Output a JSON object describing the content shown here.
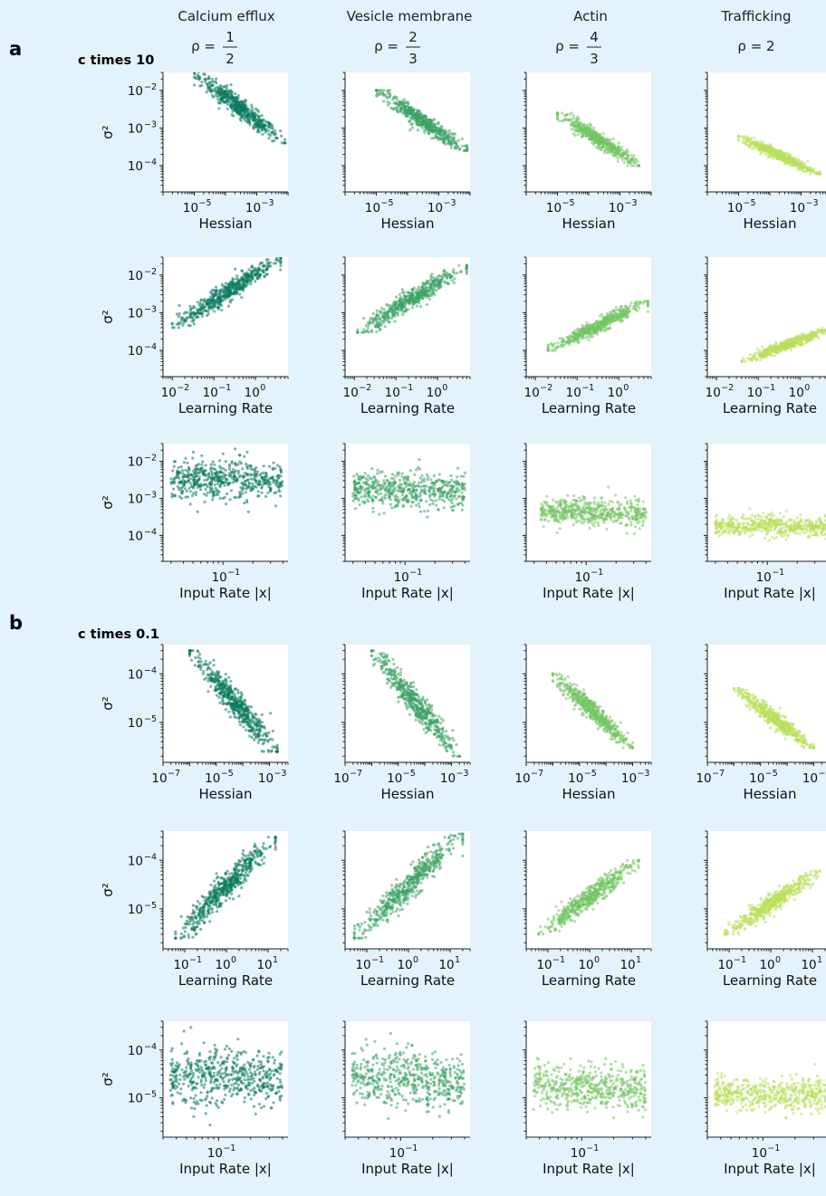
{
  "figure": {
    "panel_a_label": "a",
    "panel_b_label": "b",
    "condition_a": "c times 10",
    "condition_b": "c times 0.1"
  },
  "columns": [
    {
      "title": "Calcium efflux",
      "rho_text": "ρ =",
      "rho_num": "1",
      "rho_den": "2",
      "color": "#0b7a5e"
    },
    {
      "title": "Vesicle membrane",
      "rho_text": "ρ =",
      "rho_num": "2",
      "rho_den": "3",
      "color": "#3da265"
    },
    {
      "title": "Actin",
      "rho_text": "ρ =",
      "rho_num": "4",
      "rho_den": "3",
      "color": "#74c464"
    },
    {
      "title": "Trafficking",
      "rho_text": "ρ = 2",
      "rho_num": "",
      "rho_den": "",
      "color": "#b9e05c"
    }
  ],
  "row_labels": {
    "hessian": "Hessian",
    "learning_rate": "Learning Rate",
    "input_rate": "Input Rate |x|",
    "y_axis": "σ²"
  },
  "chart_data": [
    {
      "type": "scatter",
      "panel": "a",
      "condition": "c times 10",
      "x_variable": "Hessian",
      "y_variable": "σ²",
      "x_scale": "log",
      "y_scale": "log",
      "xlim": [
        1e-06,
        0.01
      ],
      "ylim": [
        2e-05,
        0.03
      ],
      "x_ticks": [
        1e-05,
        0.001
      ],
      "y_ticks": [
        0.0001,
        0.001,
        0.01
      ],
      "series": [
        {
          "name": "Calcium efflux",
          "x_range": [
            1e-05,
            0.008
          ],
          "y_range": [
            0.0004,
            0.03
          ],
          "trend": "negative"
        },
        {
          "name": "Vesicle membrane",
          "x_range": [
            1e-05,
            0.008
          ],
          "y_range": [
            0.00025,
            0.01
          ],
          "trend": "negative"
        },
        {
          "name": "Actin",
          "x_range": [
            1e-05,
            0.004
          ],
          "y_range": [
            0.0001,
            0.0025
          ],
          "trend": "negative"
        },
        {
          "name": "Trafficking",
          "x_range": [
            1e-05,
            0.004
          ],
          "y_range": [
            6e-05,
            0.0006
          ],
          "trend": "negative"
        }
      ]
    },
    {
      "type": "scatter",
      "panel": "a",
      "condition": "c times 10",
      "x_variable": "Learning Rate",
      "y_variable": "σ²",
      "x_scale": "log",
      "y_scale": "log",
      "xlim": [
        0.006,
        6
      ],
      "ylim": [
        2e-05,
        0.03
      ],
      "x_ticks": [
        0.01,
        0.1,
        1
      ],
      "y_ticks": [
        0.0001,
        0.001,
        0.01
      ],
      "series": [
        {
          "name": "Calcium efflux",
          "x_range": [
            0.01,
            4
          ],
          "y_range": [
            0.0004,
            0.03
          ],
          "trend": "positive"
        },
        {
          "name": "Vesicle membrane",
          "x_range": [
            0.012,
            5
          ],
          "y_range": [
            0.0003,
            0.018
          ],
          "trend": "positive"
        },
        {
          "name": "Actin",
          "x_range": [
            0.02,
            5
          ],
          "y_range": [
            0.0001,
            0.002
          ],
          "trend": "positive"
        },
        {
          "name": "Trafficking",
          "x_range": [
            0.04,
            6
          ],
          "y_range": [
            5e-05,
            0.0004
          ],
          "trend": "positive"
        }
      ]
    },
    {
      "type": "scatter",
      "panel": "a",
      "condition": "c times 10",
      "x_variable": "Input Rate |x|",
      "y_variable": "σ²",
      "x_scale": "log",
      "y_scale": "log",
      "xlim": [
        0.025,
        0.45
      ],
      "ylim": [
        2e-05,
        0.03
      ],
      "x_ticks": [
        0.1
      ],
      "y_ticks": [
        0.0001,
        0.001,
        0.01
      ],
      "series": [
        {
          "name": "Calcium efflux",
          "x_range": [
            0.03,
            0.4
          ],
          "y_range": [
            0.0004,
            0.03
          ],
          "trend": "flat"
        },
        {
          "name": "Vesicle membrane",
          "x_range": [
            0.03,
            0.4
          ],
          "y_range": [
            0.00025,
            0.012
          ],
          "trend": "flat"
        },
        {
          "name": "Actin",
          "x_range": [
            0.035,
            0.4
          ],
          "y_range": [
            0.0001,
            0.002
          ],
          "trend": "flat"
        },
        {
          "name": "Trafficking",
          "x_range": [
            0.03,
            0.4
          ],
          "y_range": [
            6e-05,
            0.0006
          ],
          "trend": "flat"
        }
      ]
    },
    {
      "type": "scatter",
      "panel": "b",
      "condition": "c times 0.1",
      "x_variable": "Hessian",
      "y_variable": "σ²",
      "x_scale": "log",
      "y_scale": "log",
      "xlim": [
        1e-07,
        0.005
      ],
      "ylim": [
        1.5e-06,
        0.0004
      ],
      "x_ticks": [
        1e-07,
        1e-05,
        0.001
      ],
      "y_ticks": [
        1e-05,
        0.0001
      ],
      "series": [
        {
          "name": "Calcium efflux",
          "x_range": [
            1e-06,
            0.002
          ],
          "y_range": [
            2.5e-06,
            0.0003
          ],
          "trend": "negative"
        },
        {
          "name": "Vesicle membrane",
          "x_range": [
            1e-06,
            0.002
          ],
          "y_range": [
            2e-06,
            0.0003
          ],
          "trend": "negative"
        },
        {
          "name": "Actin",
          "x_range": [
            1e-06,
            0.001
          ],
          "y_range": [
            3e-06,
            0.0001
          ],
          "trend": "negative"
        },
        {
          "name": "Trafficking",
          "x_range": [
            1e-06,
            0.001
          ],
          "y_range": [
            3e-06,
            5e-05
          ],
          "trend": "negative"
        }
      ]
    },
    {
      "type": "scatter",
      "panel": "b",
      "condition": "c times 0.1",
      "x_variable": "Learning Rate",
      "y_variable": "σ²",
      "x_scale": "log",
      "y_scale": "log",
      "xlim": [
        0.03,
        30
      ],
      "ylim": [
        1.5e-06,
        0.0004
      ],
      "x_ticks": [
        0.1,
        1,
        10
      ],
      "y_ticks": [
        1e-05,
        0.0001
      ],
      "series": [
        {
          "name": "Calcium efflux",
          "x_range": [
            0.06,
            15
          ],
          "y_range": [
            2.5e-06,
            0.0003
          ],
          "trend": "positive"
        },
        {
          "name": "Vesicle membrane",
          "x_range": [
            0.05,
            20
          ],
          "y_range": [
            2.5e-06,
            0.00035
          ],
          "trend": "positive"
        },
        {
          "name": "Actin",
          "x_range": [
            0.06,
            15
          ],
          "y_range": [
            3e-06,
            0.0001
          ],
          "trend": "positive"
        },
        {
          "name": "Trafficking",
          "x_range": [
            0.08,
            15
          ],
          "y_range": [
            3e-06,
            6e-05
          ],
          "trend": "positive"
        }
      ]
    },
    {
      "type": "scatter",
      "panel": "b",
      "condition": "c times 0.1",
      "x_variable": "Input Rate |x|",
      "y_variable": "σ²",
      "x_scale": "log",
      "y_scale": "log",
      "xlim": [
        0.03,
        0.45
      ],
      "ylim": [
        1.5e-06,
        0.0004
      ],
      "x_ticks": [
        0.1
      ],
      "y_ticks": [
        1e-05,
        0.0001
      ],
      "series": [
        {
          "name": "Calcium efflux",
          "x_range": [
            0.035,
            0.4
          ],
          "y_range": [
            2.5e-06,
            0.0003
          ],
          "trend": "flat"
        },
        {
          "name": "Vesicle membrane",
          "x_range": [
            0.035,
            0.4
          ],
          "y_range": [
            2.5e-06,
            0.0003
          ],
          "trend": "flat"
        },
        {
          "name": "Actin",
          "x_range": [
            0.035,
            0.4
          ],
          "y_range": [
            3e-06,
            0.0001
          ],
          "trend": "flat"
        },
        {
          "name": "Trafficking",
          "x_range": [
            0.035,
            0.4
          ],
          "y_range": [
            3e-06,
            5e-05
          ],
          "trend": "flat"
        }
      ]
    }
  ]
}
